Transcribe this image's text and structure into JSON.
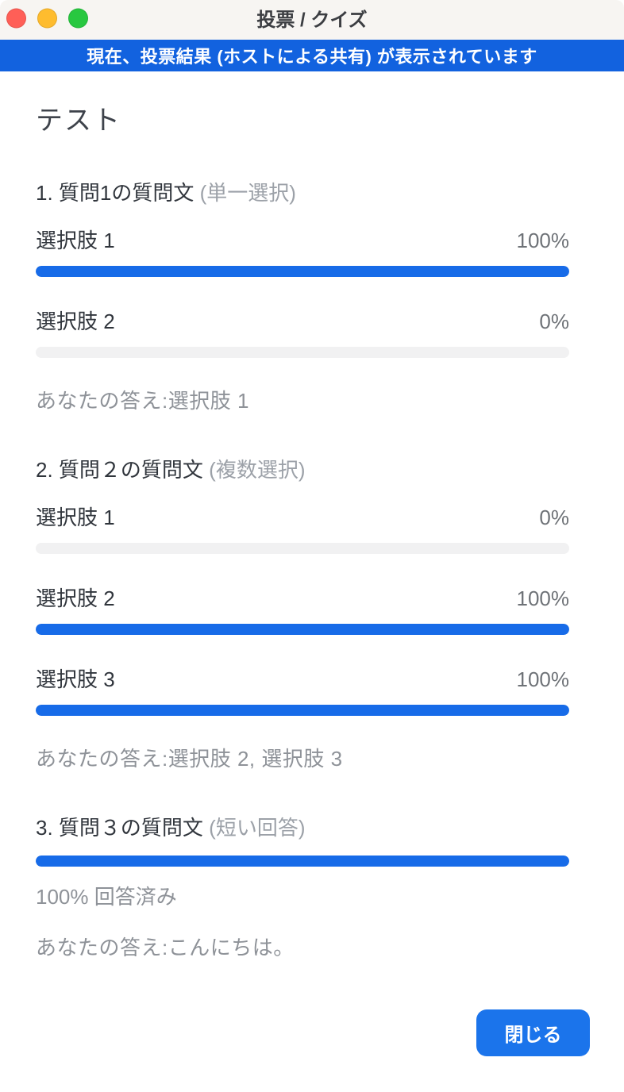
{
  "window": {
    "title": "投票 / クイズ"
  },
  "banner": {
    "text": "現在、投票結果 (ホストによる共有) が表示されています"
  },
  "poll": {
    "title": "テスト",
    "questions": [
      {
        "number": "1.",
        "text": "質問1の質問文",
        "type_label": "(単一選択)",
        "options": [
          {
            "label": "選択肢 1",
            "percent": "100%",
            "value": 100
          },
          {
            "label": "選択肢 2",
            "percent": "0%",
            "value": 0
          }
        ],
        "your_answer": "あなたの答え:選択肢 1"
      },
      {
        "number": "2.",
        "text": "質問２の質問文",
        "type_label": "(複数選択)",
        "options": [
          {
            "label": "選択肢 1",
            "percent": "0%",
            "value": 0
          },
          {
            "label": "選択肢 2",
            "percent": "100%",
            "value": 100
          },
          {
            "label": "選択肢 3",
            "percent": "100%",
            "value": 100
          }
        ],
        "your_answer": "あなたの答え:選択肢 2, 選択肢 3"
      },
      {
        "number": "3.",
        "text": "質問３の質問文",
        "type_label": "(短い回答)",
        "progress": {
          "percent_label": "100% 回答済み",
          "value": 100
        },
        "your_answer": "あなたの答え:こんにちは。"
      }
    ]
  },
  "footer": {
    "close_label": "閉じる"
  },
  "colors": {
    "banner_bg": "#1262DF",
    "bar_fill": "#176BE8",
    "bar_track": "#F1F1F2",
    "button_bg": "#1B74EB",
    "titlebar_bg": "#F7F5F2",
    "traffic_red": "#FF5F57",
    "traffic_yellow": "#FEBC2E",
    "traffic_green": "#28C840",
    "text_dark": "#30353C",
    "text_title": "#3E434B",
    "text_pct": "#6E7277",
    "text_type": "#9CA1A8",
    "text_answer": "#8E9298",
    "window_title_color": "#3C3E42"
  }
}
